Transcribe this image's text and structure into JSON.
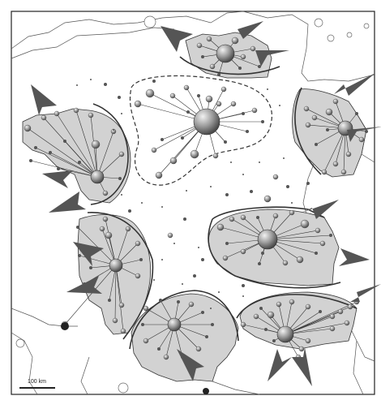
{
  "scale_bar": {
    "label": "100 km"
  },
  "colors": {
    "zone_fill": "#d2d2d2",
    "arrow": "#555555",
    "hub": "#8a8a8a",
    "line": "#333333"
  }
}
